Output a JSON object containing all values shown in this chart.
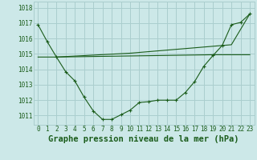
{
  "bg_color": "#cce8e8",
  "grid_color": "#aacece",
  "line_color": "#1a5c1a",
  "title": "Graphe pression niveau de la mer (hPa)",
  "ylim": [
    1010.4,
    1018.4
  ],
  "xlim": [
    -0.5,
    23.5
  ],
  "yticks": [
    1011,
    1012,
    1013,
    1014,
    1015,
    1016,
    1017,
    1018
  ],
  "xticks": [
    0,
    1,
    2,
    3,
    4,
    5,
    6,
    7,
    8,
    9,
    10,
    11,
    12,
    13,
    14,
    15,
    16,
    17,
    18,
    19,
    20,
    21,
    22,
    23
  ],
  "line1_x": [
    0,
    1,
    2,
    3,
    4,
    5,
    6,
    7,
    8,
    9,
    10,
    11,
    12,
    13,
    14,
    15,
    16,
    17,
    18,
    19,
    20,
    21,
    22,
    23
  ],
  "line1_y": [
    1016.9,
    1015.8,
    1014.8,
    1013.85,
    1013.25,
    1012.2,
    1011.3,
    1010.75,
    1010.75,
    1011.05,
    1011.35,
    1011.85,
    1011.9,
    1012.0,
    1012.0,
    1012.0,
    1012.5,
    1013.2,
    1014.2,
    1014.9,
    1015.55,
    1016.9,
    1017.05,
    1017.6
  ],
  "line2_x": [
    0,
    2,
    19,
    23
  ],
  "line2_y": [
    1014.8,
    1014.8,
    1014.95,
    1014.95
  ],
  "line3_x": [
    2,
    10,
    21,
    23
  ],
  "line3_y": [
    1014.8,
    1015.05,
    1015.6,
    1017.6
  ],
  "font_size_title": 7.5,
  "font_size_ticks": 5.5
}
